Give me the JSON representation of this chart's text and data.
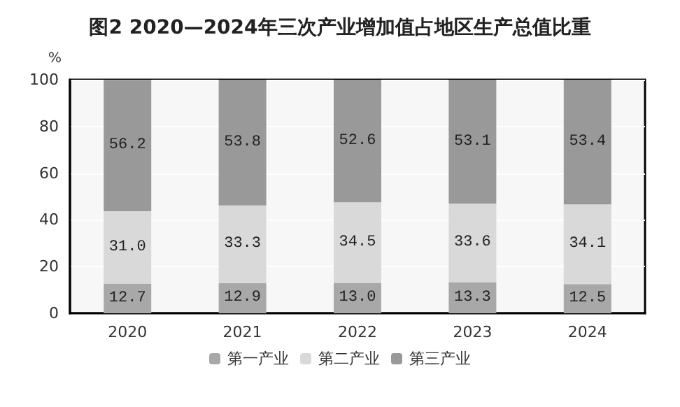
{
  "chart_data": {
    "type": "bar",
    "title": "图2 2020—2024年三次产业增加值占地区生产总值比重",
    "ylabel": "%",
    "categories": [
      "2020",
      "2021",
      "2022",
      "2023",
      "2024"
    ],
    "stacked": true,
    "series": [
      {
        "name": "第一产业",
        "color": "#a8a8a8",
        "values": [
          12.7,
          12.9,
          13.0,
          13.3,
          12.5
        ],
        "value_labels": [
          "12.7",
          "12.9",
          "13.0",
          "13.3",
          "12.5"
        ]
      },
      {
        "name": "第二产业",
        "color": "#d9d9d9",
        "values": [
          31.0,
          33.3,
          34.5,
          33.6,
          34.1
        ],
        "value_labels": [
          "31.0",
          "33.3",
          "34.5",
          "33.6",
          "34.1"
        ]
      },
      {
        "name": "第三产业",
        "color": "#999999",
        "values": [
          56.2,
          53.8,
          52.6,
          53.1,
          53.4
        ],
        "value_labels": [
          "56.2",
          "53.8",
          "52.6",
          "53.1",
          "53.4"
        ]
      }
    ],
    "ylim": [
      0,
      100
    ],
    "yticks": [
      0,
      20,
      40,
      60,
      80,
      100
    ],
    "grid": "y",
    "legend": "bottom"
  }
}
